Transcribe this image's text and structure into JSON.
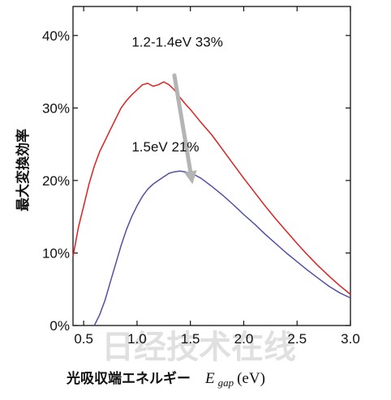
{
  "chart_data": {
    "type": "line",
    "title": "",
    "ylabel": "最大変換効率",
    "xlabel_text": "光吸収端エネルギー",
    "xlabel_symbol": "E",
    "xlabel_subscript": "gap",
    "xlabel_unit": "(eV)",
    "xlim": [
      0.4,
      3.0
    ],
    "ylim": [
      0,
      44
    ],
    "xticks": [
      0.5,
      1.0,
      1.5,
      2.0,
      2.5,
      3.0
    ],
    "xtick_labels": [
      "0.5",
      "1.0",
      "1.5",
      "2.0",
      "2.5",
      "3.0"
    ],
    "yticks": [
      0,
      10,
      20,
      30,
      40
    ],
    "ytick_labels": [
      "0%",
      "10%",
      "20%",
      "30%",
      "40%"
    ],
    "grid": false,
    "series": [
      {
        "color": "#e02020",
        "x": [
          0.4,
          0.45,
          0.5,
          0.55,
          0.6,
          0.65,
          0.7,
          0.75,
          0.8,
          0.85,
          0.9,
          0.95,
          1.0,
          1.05,
          1.1,
          1.15,
          1.2,
          1.25,
          1.3,
          1.35,
          1.4,
          1.45,
          1.5,
          1.6,
          1.7,
          1.8,
          1.9,
          2.0,
          2.1,
          2.2,
          2.3,
          2.4,
          2.5,
          2.6,
          2.7,
          2.8,
          2.9,
          3.0
        ],
        "y": [
          9.5,
          13.5,
          16.5,
          19.5,
          22.0,
          24.0,
          25.5,
          27.0,
          28.5,
          30.0,
          31.0,
          31.8,
          32.5,
          33.2,
          33.4,
          33.0,
          33.2,
          33.6,
          33.2,
          32.5,
          31.5,
          30.6,
          29.8,
          28.0,
          26.3,
          24.3,
          22.3,
          20.3,
          18.4,
          16.5,
          14.7,
          13.0,
          11.3,
          9.7,
          8.2,
          6.8,
          5.5,
          4.3
        ]
      },
      {
        "color": "#5050a8",
        "x": [
          0.6,
          0.65,
          0.7,
          0.75,
          0.8,
          0.85,
          0.9,
          0.95,
          1.0,
          1.05,
          1.1,
          1.15,
          1.2,
          1.25,
          1.3,
          1.35,
          1.4,
          1.45,
          1.5,
          1.55,
          1.6,
          1.7,
          1.8,
          1.9,
          2.0,
          2.1,
          2.2,
          2.3,
          2.4,
          2.5,
          2.6,
          2.7,
          2.8,
          2.9,
          3.0
        ],
        "y": [
          0.0,
          1.5,
          3.5,
          6.0,
          8.5,
          11.0,
          13.2,
          15.0,
          16.5,
          17.8,
          18.8,
          19.5,
          20.0,
          20.5,
          21.0,
          21.2,
          21.3,
          21.2,
          21.0,
          20.7,
          20.3,
          19.2,
          18.0,
          16.7,
          15.3,
          14.0,
          12.6,
          11.3,
          10.0,
          8.8,
          7.6,
          6.5,
          5.4,
          4.5,
          3.8
        ]
      }
    ],
    "annotations": [
      {
        "text": "1.2-1.4eV 33%",
        "x": 0.95,
        "y": 38.5
      },
      {
        "text": "1.5eV 21%",
        "x": 0.95,
        "y": 24.0
      }
    ],
    "arrow": {
      "from": [
        1.35,
        34.5
      ],
      "to": [
        1.52,
        19.5
      ],
      "color": "#b4b4b4"
    }
  },
  "watermark": "日经技术在线"
}
